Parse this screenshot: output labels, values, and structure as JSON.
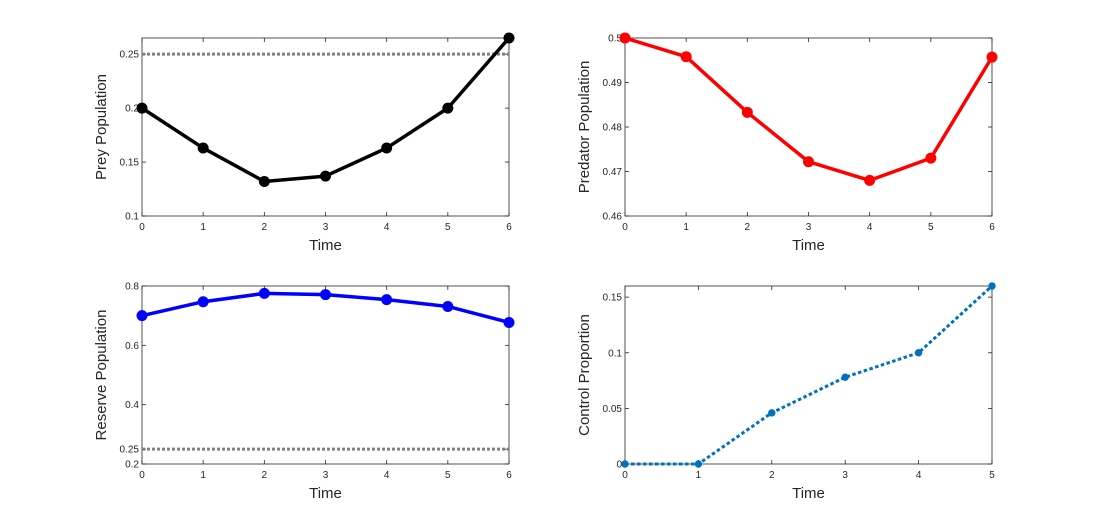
{
  "chart_data": [
    {
      "id": "prey",
      "type": "line",
      "xlabel": "Time",
      "ylabel": "Prey Population",
      "xlim": [
        0,
        6
      ],
      "ylim": [
        0.1,
        0.265
      ],
      "xticks": [
        0,
        1,
        2,
        3,
        4,
        5,
        6
      ],
      "xtick_labels": [
        "0",
        "1",
        "2",
        "3",
        "4",
        "5",
        "6"
      ],
      "yticks": [
        0.1,
        0.15,
        0.2,
        0.25
      ],
      "ytick_labels": [
        "0.1",
        "0.15",
        "0.2",
        "0.25"
      ],
      "reference_line": {
        "y": 0.25,
        "color": "#808080",
        "style": "dotted"
      },
      "series": [
        {
          "name": "Prey",
          "color": "#000000",
          "style": "solid",
          "x": [
            0,
            1,
            2,
            3,
            4,
            5,
            6
          ],
          "y": [
            0.2,
            0.163,
            0.132,
            0.137,
            0.163,
            0.2,
            0.265
          ]
        }
      ]
    },
    {
      "id": "predator",
      "type": "line",
      "xlabel": "Time",
      "ylabel": "Predator Population",
      "xlim": [
        0,
        6
      ],
      "ylim": [
        0.46,
        0.5
      ],
      "xticks": [
        0,
        1,
        2,
        3,
        4,
        5,
        6
      ],
      "xtick_labels": [
        "0",
        "1",
        "2",
        "3",
        "4",
        "5",
        "6"
      ],
      "yticks": [
        0.46,
        0.47,
        0.48,
        0.49,
        0.5
      ],
      "ytick_labels": [
        "0.46",
        "0.47",
        "0.48",
        "0.49",
        "0.5"
      ],
      "series": [
        {
          "name": "Predator",
          "color": "#ff0000",
          "style": "solid",
          "x": [
            0,
            1,
            2,
            3,
            4,
            5,
            6
          ],
          "y": [
            0.5,
            0.4958,
            0.4833,
            0.4722,
            0.468,
            0.473,
            0.4957
          ]
        }
      ]
    },
    {
      "id": "reserve",
      "type": "line",
      "xlabel": "Time",
      "ylabel": "Reserve Population",
      "xlim": [
        0,
        6
      ],
      "ylim": [
        0.2,
        0.8
      ],
      "xticks": [
        0,
        1,
        2,
        3,
        4,
        5,
        6
      ],
      "xtick_labels": [
        "0",
        "1",
        "2",
        "3",
        "4",
        "5",
        "6"
      ],
      "yticks": [
        0.2,
        0.25,
        0.4,
        0.6,
        0.8
      ],
      "ytick_labels": [
        "0.2",
        "0.25",
        "0.4",
        "0.6",
        "0.8"
      ],
      "reference_line": {
        "y": 0.25,
        "color": "#808080",
        "style": "dotted"
      },
      "series": [
        {
          "name": "Reserve",
          "color": "#0000ff",
          "style": "solid",
          "x": [
            0,
            1,
            2,
            3,
            4,
            5,
            6
          ],
          "y": [
            0.7,
            0.747,
            0.775,
            0.771,
            0.754,
            0.731,
            0.677
          ]
        }
      ]
    },
    {
      "id": "control",
      "type": "line",
      "xlabel": "Time",
      "ylabel": "Control Proportion",
      "xlim": [
        0,
        5
      ],
      "ylim": [
        0,
        0.16
      ],
      "xticks": [
        0,
        1,
        2,
        3,
        4,
        5
      ],
      "xtick_labels": [
        "0",
        "1",
        "2",
        "3",
        "4",
        "5"
      ],
      "yticks": [
        0,
        0.05,
        0.1,
        0.15
      ],
      "ytick_labels": [
        "0",
        "0.05",
        "0.1",
        "0.15"
      ],
      "series": [
        {
          "name": "Control",
          "color": "#0072bd",
          "style": "dotted",
          "x": [
            0,
            1,
            2,
            3,
            4,
            5
          ],
          "y": [
            0,
            0,
            0.046,
            0.078,
            0.1,
            0.16
          ]
        }
      ]
    }
  ]
}
